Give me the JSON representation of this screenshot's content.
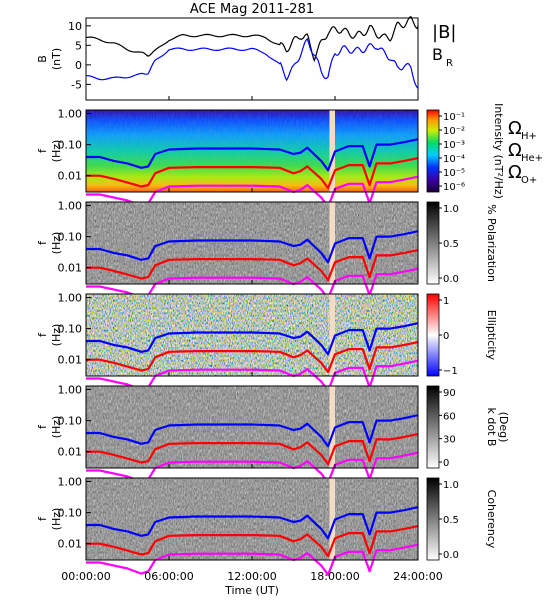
{
  "figure": {
    "title": "ACE Mag 2011-281",
    "xlabel": "Time (UT)",
    "x_ticks": [
      "00:00:00",
      "06:00:00",
      "12:00:00",
      "18:00:00",
      "24:00:00"
    ],
    "x_range_hours": [
      0,
      24
    ]
  },
  "legend_field": {
    "b_total": "|B|",
    "b_radial": "B",
    "b_radial_sub": "R",
    "b_total_color": "#000000",
    "b_radial_color": "#0000ff"
  },
  "legend_gyro": [
    {
      "symbol": "Ω",
      "sub": "H+",
      "color": "#0000ff"
    },
    {
      "symbol": "Ω",
      "sub": "He+",
      "color": "#ff0000"
    },
    {
      "symbol": "Ω",
      "sub": "O+",
      "color": "#ff00ff"
    }
  ],
  "chart_data": [
    {
      "type": "line",
      "ylabel": "B",
      "yunit": "(nT)",
      "ylim": [
        -9,
        12
      ],
      "y_ticks": [
        "10",
        "5",
        "0",
        "-5"
      ],
      "x_hours": [
        0,
        1,
        2,
        3,
        4,
        4.5,
        5,
        6,
        7,
        8,
        9,
        10,
        11,
        12,
        13,
        14,
        14.5,
        15,
        15.5,
        16,
        16.5,
        17,
        17.5,
        18,
        18.5,
        19,
        19.5,
        20,
        20.5,
        21,
        21.5,
        22,
        22.5,
        23,
        23.5,
        24
      ],
      "series": [
        {
          "name": "|B|",
          "color": "#000000",
          "values": [
            7,
            6.5,
            5.5,
            4,
            3,
            2.5,
            3.5,
            6.5,
            7.5,
            7.5,
            7.5,
            7.5,
            7.5,
            7.5,
            7,
            5,
            4,
            6,
            7.5,
            7,
            2,
            5.5,
            8.5,
            9,
            9,
            8,
            7.5,
            8,
            9.5,
            8,
            7,
            7,
            10,
            10.5,
            11.5,
            10
          ]
        },
        {
          "name": "BR",
          "color": "#0000ff",
          "values": [
            -3,
            -3.5,
            -3.5,
            -3,
            -2.5,
            -2,
            1,
            4,
            4,
            4,
            4,
            4,
            4,
            4,
            3,
            0,
            -3,
            -1,
            3,
            6,
            3,
            -2,
            -3,
            3,
            4,
            4,
            3.5,
            4,
            4.5,
            5,
            3,
            2,
            -1,
            0,
            -1,
            -6
          ]
        }
      ]
    },
    {
      "type": "heatmap",
      "ylabel": "f",
      "yunit": "(Hz)",
      "y_ticks": [
        "1.00",
        "0.10",
        "0.01"
      ],
      "colorbar_label": "Intensity (nT²/Hz)",
      "colorbar_ticks": [
        "10⁻¹",
        "10⁻²",
        "10⁻³",
        "10⁻⁴",
        "10⁻⁵",
        "10⁻⁶"
      ]
    },
    {
      "type": "heatmap",
      "ylabel": "f",
      "yunit": "(Hz)",
      "y_ticks": [
        "1.00",
        "0.10",
        "0.01"
      ],
      "colorbar_label": "% Polarization",
      "colorbar_ticks": [
        "1.0",
        "0.5",
        "0.0"
      ]
    },
    {
      "type": "heatmap",
      "ylabel": "f",
      "yunit": "(Hz)",
      "y_ticks": [
        "1.00",
        "0.10",
        "0.01"
      ],
      "colorbar_label": "Ellipticity",
      "colorbar_ticks": [
        "1",
        "0",
        "−1"
      ]
    },
    {
      "type": "heatmap",
      "ylabel": "f",
      "yunit": "(Hz)",
      "y_ticks": [
        "1.00",
        "0.10",
        "0.01"
      ],
      "colorbar_label": "k dot B",
      "colorbar_unit": "(Deg)",
      "colorbar_ticks": [
        "90",
        "60",
        "30",
        "0"
      ]
    },
    {
      "type": "heatmap",
      "ylabel": "f",
      "yunit": "(Hz)",
      "y_ticks": [
        "1.00",
        "0.10",
        "0.01"
      ],
      "colorbar_label": "Coherency",
      "colorbar_ticks": [
        "1.0",
        "0.5",
        "0.0"
      ]
    }
  ],
  "gyro_lines": {
    "x_hours": [
      0,
      1,
      2,
      3,
      4,
      4.5,
      5,
      6,
      8,
      10,
      12,
      14,
      15,
      15.5,
      16,
      17,
      17.5,
      18,
      19,
      20,
      20.5,
      21,
      22,
      23,
      24
    ],
    "H_plus": [
      0.04,
      0.04,
      0.03,
      0.025,
      0.018,
      0.02,
      0.05,
      0.07,
      0.075,
      0.075,
      0.075,
      0.07,
      0.05,
      0.055,
      0.08,
      0.03,
      0.015,
      0.06,
      0.09,
      0.09,
      0.02,
      0.1,
      0.1,
      0.12,
      0.15
    ],
    "He_plus": [
      0.01,
      0.01,
      0.008,
      0.006,
      0.0045,
      0.005,
      0.012,
      0.018,
      0.019,
      0.019,
      0.019,
      0.018,
      0.012,
      0.014,
      0.02,
      0.008,
      0.004,
      0.015,
      0.022,
      0.022,
      0.005,
      0.025,
      0.025,
      0.03,
      0.037
    ],
    "O_plus": [
      0.0025,
      0.0025,
      0.002,
      0.0016,
      0.0011,
      0.0013,
      0.003,
      0.0045,
      0.0048,
      0.0048,
      0.0048,
      0.0045,
      0.003,
      0.0035,
      0.005,
      0.002,
      0.001,
      0.0038,
      0.0055,
      0.0055,
      0.0013,
      0.0062,
      0.0062,
      0.0075,
      0.0093
    ]
  },
  "data_gap_hours": [
    17.6,
    18.0
  ]
}
